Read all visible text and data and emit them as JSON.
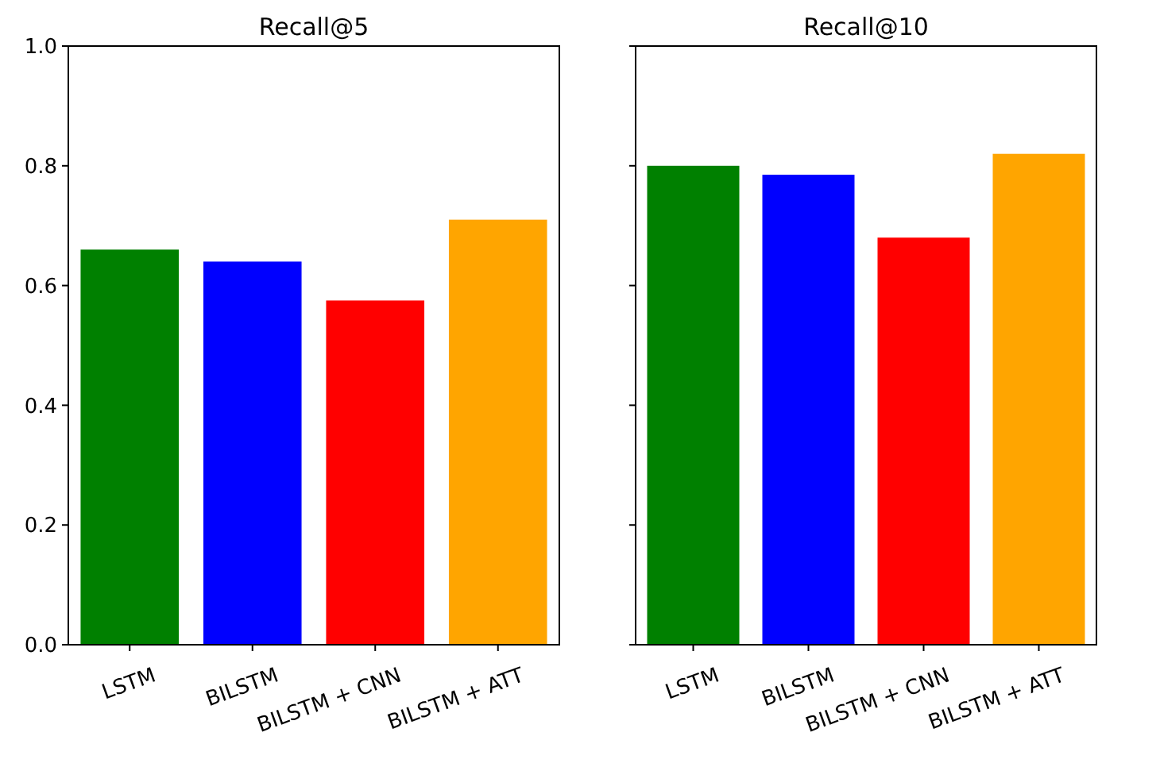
{
  "chart_data": [
    {
      "type": "bar",
      "title": "Recall@5",
      "categories": [
        "LSTM",
        "BILSTM",
        "BILSTM + CNN",
        "BILSTM + ATT"
      ],
      "values": [
        0.66,
        0.64,
        0.575,
        0.71
      ],
      "colors": [
        "#008000",
        "#0000ff",
        "#ff0000",
        "#ffa500"
      ],
      "ylim": [
        0,
        1
      ],
      "yticks": [
        {
          "value": 0,
          "label": "0.0"
        },
        0.2,
        0.4,
        0.6,
        0.8,
        {
          "value": 1,
          "label": "1.0"
        }
      ]
    },
    {
      "type": "bar",
      "title": "Recall@10",
      "categories": [
        "LSTM",
        "BILSTM",
        "BILSTM + CNN",
        "BILSTM + ATT"
      ],
      "values": [
        0.8,
        0.785,
        0.68,
        0.82
      ],
      "colors": [
        "#008000",
        "#0000ff",
        "#ff0000",
        "#ffa500"
      ],
      "ylim": [
        0,
        1
      ],
      "yticks": [
        0,
        0.2,
        0.4,
        0.6,
        0.8,
        1
      ],
      "tick_labels": "x"
    }
  ]
}
